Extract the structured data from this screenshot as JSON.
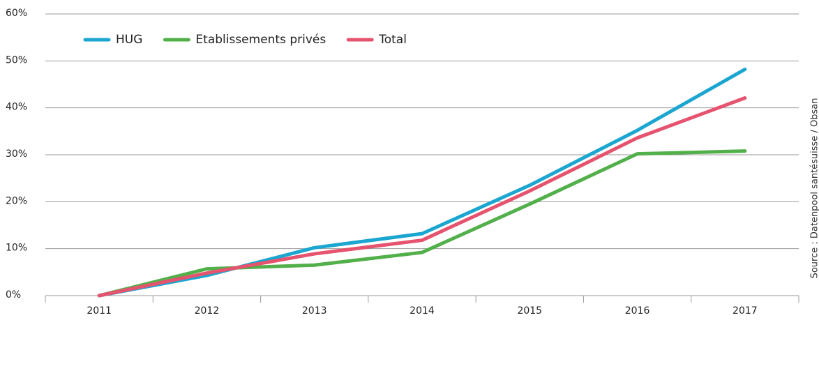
{
  "chart_data": {
    "type": "line",
    "categories": [
      "2011",
      "2012",
      "2013",
      "2014",
      "2015",
      "2016",
      "2017"
    ],
    "series": [
      {
        "name": "HUG",
        "color": "#1ba6d1",
        "values": [
          0,
          4.3,
          10.2,
          13.2,
          23.5,
          35.2,
          48.2
        ]
      },
      {
        "name": "Etablissements privés",
        "color": "#52b04a",
        "values": [
          0,
          5.7,
          6.5,
          9.2,
          19.5,
          30.2,
          30.8
        ]
      },
      {
        "name": "Total",
        "color": "#e5536e",
        "values": [
          0,
          4.8,
          8.9,
          11.8,
          22.3,
          33.6,
          42.1
        ]
      }
    ],
    "ylim": [
      0,
      60
    ],
    "yticks": [
      {
        "value": 0,
        "label": "0%"
      },
      {
        "value": 10,
        "label": "10%"
      },
      {
        "value": 20,
        "label": "20%"
      },
      {
        "value": 30,
        "label": "30%"
      },
      {
        "value": 40,
        "label": "40%"
      },
      {
        "value": 50,
        "label": "50%"
      },
      {
        "value": 60,
        "label": "60%"
      }
    ],
    "grid": true,
    "legend": "top-left",
    "source": "Source : Datenpool santésuisse / Obsan"
  }
}
